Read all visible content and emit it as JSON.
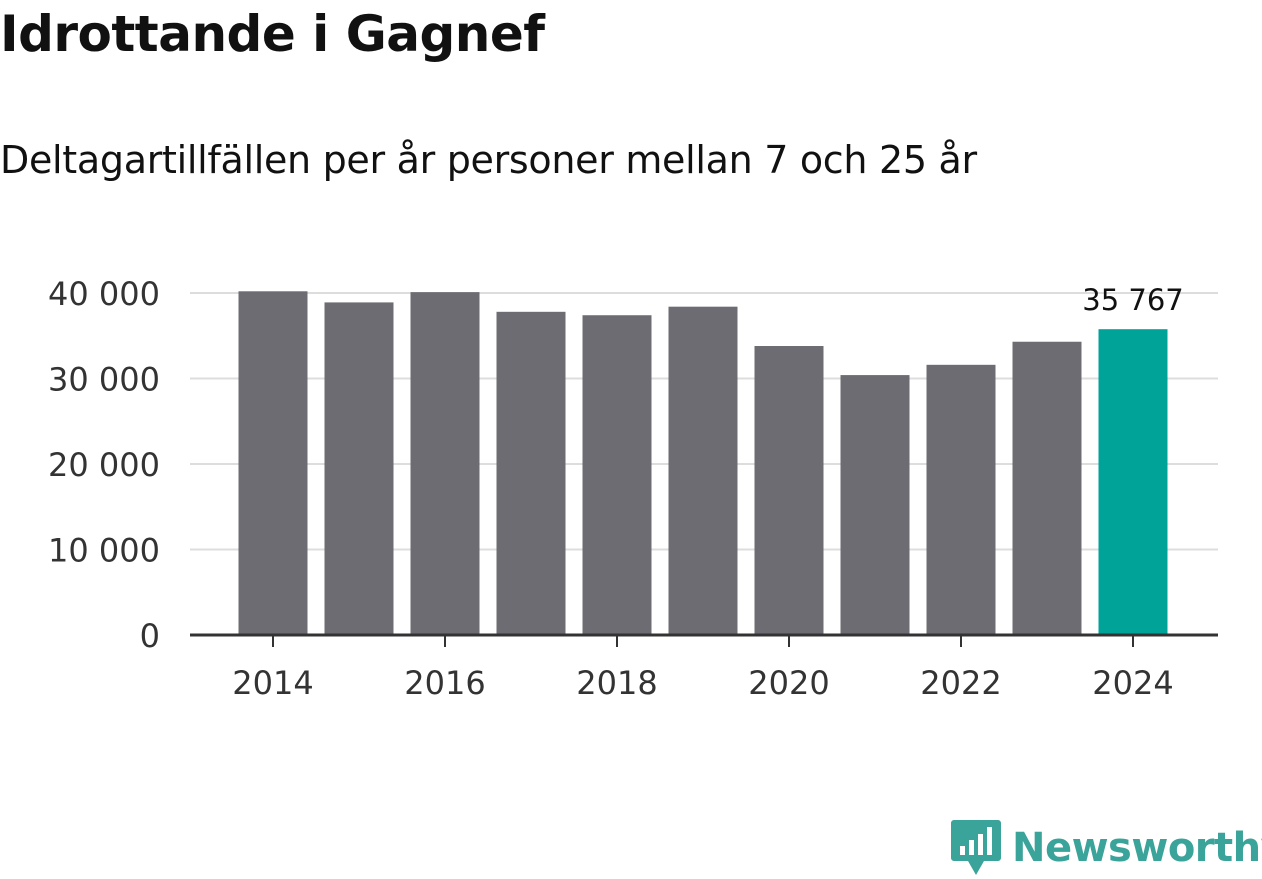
{
  "colors": {
    "bar": "#6d6c72",
    "highlight": "#00a398",
    "grid": "#dddddd",
    "axis": "#333333",
    "brand": "#3aa39a"
  },
  "brand": {
    "name": "Newsworthy",
    "icon": "newsworthy-logo-icon"
  },
  "chart_data": {
    "type": "bar",
    "title": "Idrottande i Gagnef",
    "subtitle": "Deltagartillfällen per år personer mellan 7 och 25 år",
    "x": [
      2014,
      2015,
      2016,
      2017,
      2018,
      2019,
      2020,
      2021,
      2022,
      2023,
      2024
    ],
    "values": [
      40200,
      38900,
      40100,
      37800,
      37400,
      38400,
      33800,
      30400,
      31600,
      34300,
      35767
    ],
    "highlight_index": 10,
    "highlight_label": "35 767",
    "ylim": [
      0,
      40000
    ],
    "yticks": [
      0,
      10000,
      20000,
      30000,
      40000
    ],
    "ytick_labels": [
      "0",
      "10 000",
      "20 000",
      "30 000",
      "40 000"
    ],
    "xticks": [
      2014,
      2016,
      2018,
      2020,
      2022,
      2024
    ],
    "xtick_labels": [
      "2014",
      "2016",
      "2018",
      "2020",
      "2022",
      "2024"
    ],
    "xlabel": "",
    "ylabel": "",
    "grid": true
  }
}
